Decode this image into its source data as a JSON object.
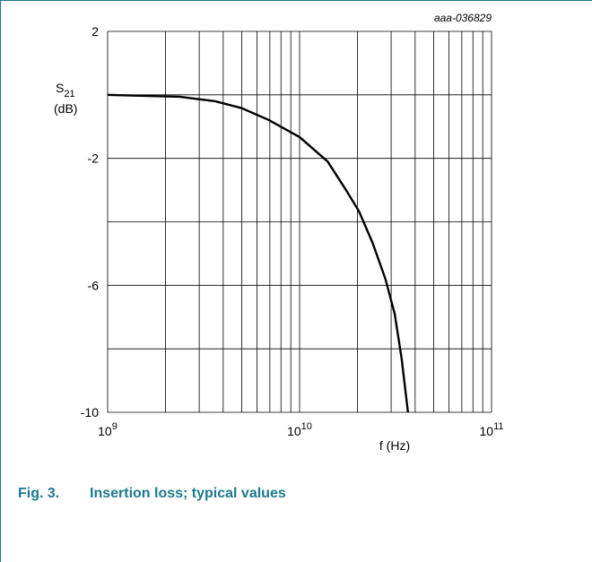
{
  "chart_data": {
    "type": "line",
    "code": "aaa-036829",
    "ylabel": {
      "symbol": "S",
      "subscript": "21",
      "unit": "(dB)"
    },
    "xlabel": "f (Hz)",
    "caption": {
      "number": "Fig. 3.",
      "text": "Insertion loss; typical values"
    },
    "xscale": "log",
    "xlim": [
      1000000000,
      100000000000
    ],
    "xticks": [
      {
        "value": 1000000000,
        "label": "10",
        "exponent": "9"
      },
      {
        "value": 10000000000,
        "label": "10",
        "exponent": "10"
      },
      {
        "value": 100000000000,
        "label": "10",
        "exponent": "11"
      }
    ],
    "minor_grid": true,
    "ylim": [
      -10,
      2
    ],
    "yticks": [
      2,
      -2,
      -6,
      -10
    ],
    "yminor": [
      0,
      -4,
      -8
    ],
    "grid": true,
    "x": [
      1000000000,
      2370000000,
      3630000000,
      5000000000,
      6900000000,
      10000000000,
      14000000000,
      17300000000,
      20400000000,
      24000000000,
      28000000000,
      31300000000,
      34000000000,
      36700000000
    ],
    "series": [
      {
        "color": "#000000",
        "values": [
          0.0,
          -0.06,
          -0.2,
          -0.42,
          -0.79,
          -1.33,
          -2.1,
          -2.96,
          -3.67,
          -4.66,
          -5.8,
          -6.9,
          -8.3,
          -10
        ]
      }
    ]
  }
}
